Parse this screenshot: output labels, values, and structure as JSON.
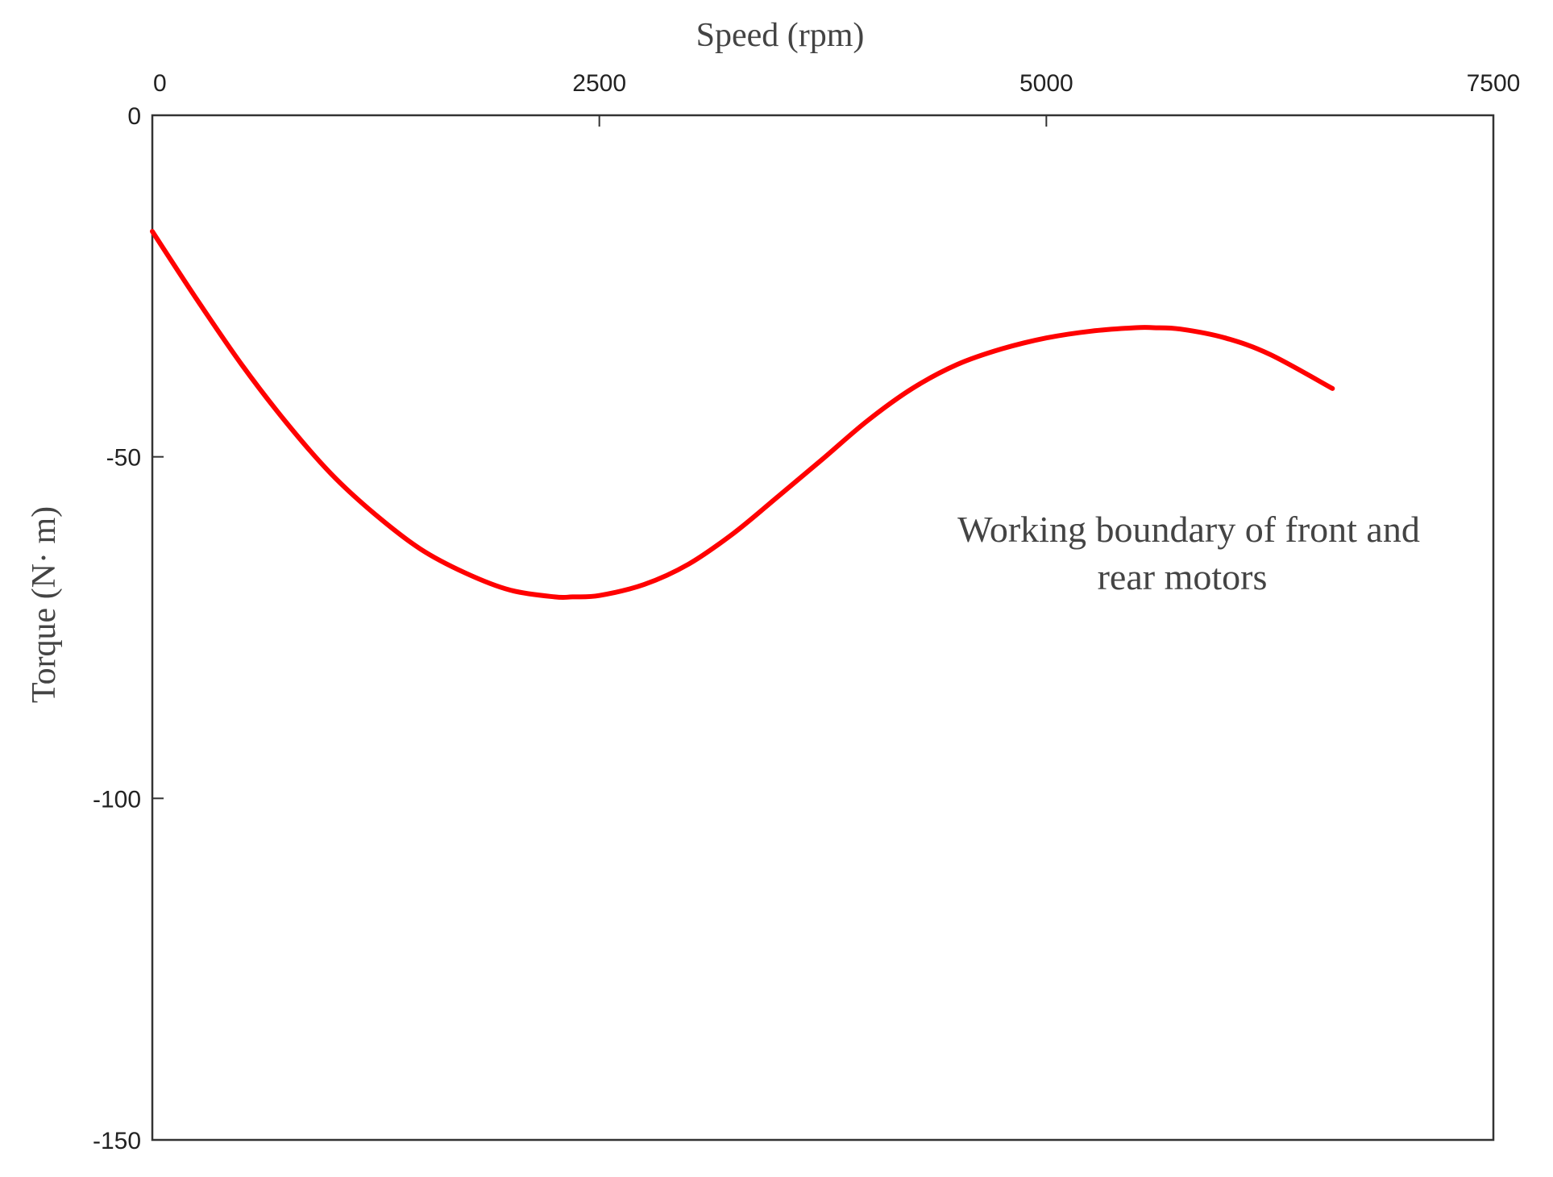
{
  "chart_data": {
    "type": "line",
    "title": "",
    "xlabel": "Speed (rpm)",
    "ylabel": "Torque (N· m)",
    "xlim": [
      0,
      7500
    ],
    "ylim": [
      -150,
      0
    ],
    "x_axis_position": "top",
    "x_ticks": [
      0,
      2500,
      5000,
      7500
    ],
    "y_ticks": [
      0,
      -50,
      -100,
      -150
    ],
    "x_tick_labels": [
      "0",
      "2500",
      "5000",
      "7500"
    ],
    "y_tick_labels": [
      "0",
      "-50",
      "-100",
      "-150"
    ],
    "grid": false,
    "annotations": [
      "Working boundary of front and",
      "rear motors"
    ],
    "series": [
      {
        "color": "#ff0000",
        "x": [
          0,
          250,
          500,
          750,
          1000,
          1250,
          1500,
          1750,
          2000,
          2250,
          2350,
          2500,
          2750,
          3000,
          3250,
          3500,
          3750,
          4000,
          4250,
          4500,
          4750,
          5000,
          5250,
          5500,
          5600,
          5750,
          6000,
          6250,
          6600
        ],
        "y": [
          -17,
          -27,
          -36.5,
          -45,
          -52.5,
          -58.5,
          -63.5,
          -67,
          -69.5,
          -70.5,
          -70.5,
          -70.3,
          -68.7,
          -65.7,
          -61.2,
          -55.8,
          -50.3,
          -44.7,
          -40,
          -36.5,
          -34.2,
          -32.6,
          -31.6,
          -31.1,
          -31.1,
          -31.3,
          -32.6,
          -35,
          -40
        ]
      }
    ]
  }
}
